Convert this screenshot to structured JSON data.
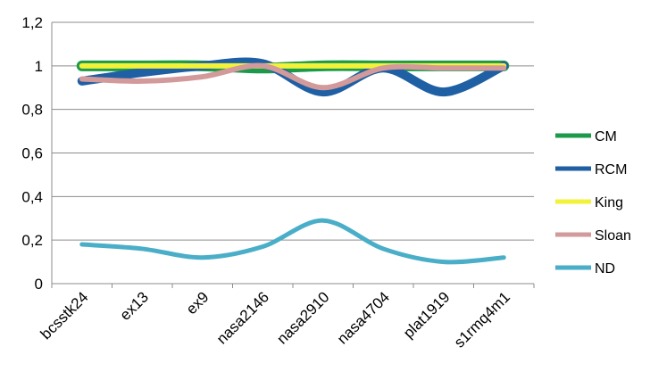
{
  "chart_data": {
    "type": "line",
    "title": "",
    "xlabel": "",
    "ylabel": "",
    "categories": [
      "bcsstk24",
      "ex13",
      "ex9",
      "nasa2146",
      "nasa2910",
      "nasa4704",
      "plat1919",
      "s1rmq4m1"
    ],
    "ylim": [
      0,
      1.2
    ],
    "yticks": [
      "0",
      "0,2",
      "0,4",
      "0,6",
      "0,8",
      "1",
      "1,2"
    ],
    "grid": "horizontal",
    "legend_position": "right",
    "series": [
      {
        "name": "CM",
        "color": "#1a9a4a",
        "values": [
          1.0,
          1.0,
          1.0,
          0.99,
          1.0,
          1.0,
          1.0,
          1.0
        ]
      },
      {
        "name": "RCM",
        "color": "#1f5fa3",
        "values": [
          0.93,
          0.97,
          1.0,
          1.01,
          0.88,
          0.99,
          0.88,
          1.0
        ]
      },
      {
        "name": "King",
        "color": "#f2f23a",
        "values": [
          1.0,
          1.0,
          1.0,
          1.0,
          1.0,
          1.0,
          1.0,
          1.0
        ]
      },
      {
        "name": "Sloan",
        "color": "#d29a9a",
        "values": [
          0.94,
          0.93,
          0.95,
          1.0,
          0.9,
          0.99,
          0.99,
          0.99
        ]
      },
      {
        "name": "ND",
        "color": "#4aaec8",
        "values": [
          0.18,
          0.16,
          0.12,
          0.17,
          0.29,
          0.16,
          0.1,
          0.12
        ]
      }
    ]
  }
}
